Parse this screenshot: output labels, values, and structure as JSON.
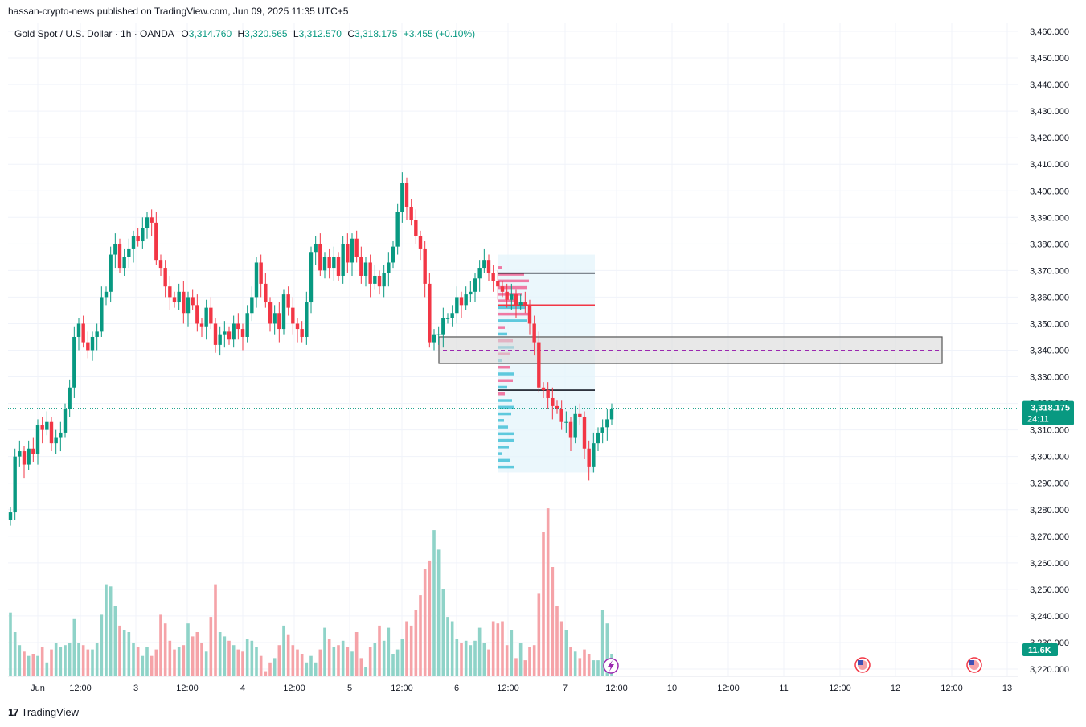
{
  "publisher_line": "hassan-crypto-news published on TradingView.com, Jun 09, 2025 11:35 UTC+5",
  "legend": {
    "symbol": "Gold Spot / U.S. Dollar · 1h · OANDA",
    "o_label": "O",
    "o": "3,314.760",
    "h_label": "H",
    "h": "3,320.565",
    "l_label": "L",
    "l": "3,312.570",
    "c_label": "C",
    "c": "3,318.175",
    "change": "+3.455 (+0.10%)"
  },
  "price_label": {
    "price": "3,318.175",
    "countdown": "24:11"
  },
  "volume_label": "11.6K",
  "footer_logo": "TradingView",
  "colors": {
    "up": "#089981",
    "down": "#f23645",
    "vol_up": "#8fd3c8",
    "vol_down": "#f5a3a8",
    "grid": "#f0f3fa"
  },
  "chart_data": {
    "type": "candlestick",
    "symbol": "XAUUSD",
    "interval": "1h",
    "ylim": [
      3215,
      3465
    ],
    "y_ticks": [
      "3,460.000",
      "3,450.000",
      "3,440.000",
      "3,430.000",
      "3,420.000",
      "3,410.000",
      "3,400.000",
      "3,390.000",
      "3,380.000",
      "3,370.000",
      "3,360.000",
      "3,350.000",
      "3,340.000",
      "3,330.000",
      "3,320.000",
      "3,310.000",
      "3,300.000",
      "3,290.000",
      "3,280.000",
      "3,270.000",
      "3,260.000",
      "3,250.000",
      "3,240.000",
      "3,230.000",
      "3,220.000"
    ],
    "x_ticks": [
      "Jun",
      "12:00",
      "3",
      "12:00",
      "4",
      "12:00",
      "5",
      "12:00",
      "6",
      "12:00",
      "7",
      "12:00",
      "10",
      "12:00",
      "11",
      "12:00",
      "12",
      "12:00",
      "13"
    ],
    "close_path": [
      3279,
      3300,
      3302,
      3297,
      3303,
      3301,
      3312,
      3310,
      3313,
      3305,
      3307,
      3309,
      3318,
      3326,
      3345,
      3350,
      3343,
      3340,
      3345,
      3347,
      3360,
      3362,
      3376,
      3380,
      3371,
      3375,
      3378,
      3383,
      3381,
      3386,
      3390,
      3388,
      3374,
      3371,
      3364,
      3360,
      3358,
      3362,
      3354,
      3360,
      3357,
      3350,
      3349,
      3356,
      3350,
      3342,
      3346,
      3347,
      3344,
      3350,
      3348,
      3345,
      3354,
      3360,
      3373,
      3365,
      3358,
      3350,
      3354,
      3348,
      3361,
      3356,
      3350,
      3348,
      3345,
      3358,
      3377,
      3380,
      3370,
      3375,
      3371,
      3375,
      3368,
      3380,
      3373,
      3382,
      3375,
      3368,
      3373,
      3365,
      3368,
      3364,
      3369,
      3373,
      3379,
      3392,
      3403,
      3394,
      3389,
      3383,
      3378,
      3365,
      3343,
      3346,
      3346,
      3352,
      3352,
      3354,
      3360,
      3357,
      3361,
      3362,
      3367,
      3371,
      3374,
      3369,
      3366,
      3364,
      3362,
      3359,
      3361,
      3357,
      3358,
      3357,
      3350,
      3343,
      3326,
      3325,
      3322,
      3319,
      3318,
      3313,
      3313,
      3307,
      3316,
      3315,
      3303,
      3296,
      3305,
      3309,
      3311,
      3314,
      3318
    ],
    "volume_path": [
      29,
      20,
      14,
      11,
      9,
      10,
      9,
      13,
      6,
      12,
      15,
      13,
      14,
      15,
      26,
      15,
      14,
      12,
      12,
      15,
      28,
      42,
      41,
      32,
      23,
      21,
      20,
      15,
      13,
      9,
      13,
      9,
      12,
      28,
      24,
      16,
      12,
      13,
      14,
      24,
      18,
      20,
      15,
      11,
      27,
      42,
      20,
      18,
      16,
      14,
      12,
      11,
      17,
      16,
      13,
      9,
      2,
      6,
      8,
      14,
      23,
      19,
      14,
      12,
      10,
      6,
      9,
      6,
      12,
      22,
      17,
      13,
      14,
      16,
      13,
      11,
      20,
      8,
      4,
      13,
      15,
      23,
      16,
      22,
      10,
      12,
      17,
      25,
      23,
      30,
      37,
      49,
      53,
      67,
      58,
      40,
      27,
      25,
      17,
      15,
      16,
      14,
      16,
      22,
      15,
      12,
      25,
      24,
      25,
      14,
      21,
      8,
      15,
      7,
      13,
      14,
      38,
      66,
      77,
      50,
      32,
      25,
      21,
      13,
      11,
      8,
      12,
      10,
      7,
      7,
      30,
      24,
      10
    ],
    "highlight_box": {
      "price_top": 3345,
      "price_bottom": 3335,
      "mid_price": 3340
    },
    "levels": [
      {
        "price": 3369,
        "color": "#131722"
      },
      {
        "price": 3357,
        "color": "#f23645"
      },
      {
        "price": 3325,
        "color": "#131722"
      }
    ],
    "last_price": 3318.175
  }
}
